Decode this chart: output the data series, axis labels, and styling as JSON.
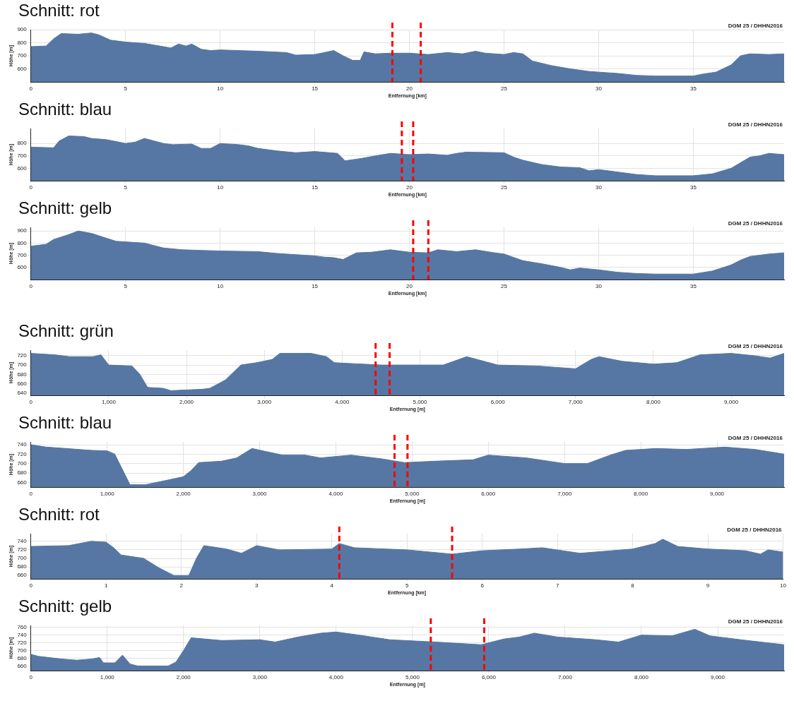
{
  "chart_data": [
    {
      "type": "area",
      "title": "Schnitt: rot",
      "xlabel": "Entfernung [km]",
      "ylabel": "Höhe [m]",
      "annotations": [
        "DGM 25 / DHHN2016"
      ],
      "grid": true,
      "legend": false,
      "marker": "none",
      "xlim": [
        0,
        39.8
      ],
      "xticks": [
        0,
        5,
        10,
        15,
        20,
        25,
        30,
        35
      ],
      "ylim": [
        500,
        900
      ],
      "yticks": [
        600,
        700,
        800,
        900
      ],
      "x": [
        0,
        0.8,
        1.2,
        1.6,
        2.5,
        3.2,
        3.6,
        4.2,
        5,
        6,
        7,
        7.4,
        7.8,
        8.2,
        8.5,
        9,
        9.5,
        10,
        12,
        13.5,
        14,
        15,
        15.5,
        16,
        16.5,
        17,
        17.4,
        17.6,
        18.2,
        19,
        20,
        21,
        22,
        22.8,
        23.5,
        24,
        25,
        25.5,
        26,
        26.5,
        27.5,
        28.5,
        29.5,
        30,
        31,
        32,
        33,
        35,
        35.5,
        36.2,
        37,
        37.5,
        38,
        39,
        39.8
      ],
      "series": [
        {
          "color": "#5677a3",
          "values": [
            770,
            775,
            830,
            870,
            865,
            875,
            860,
            820,
            805,
            795,
            770,
            760,
            790,
            775,
            790,
            750,
            740,
            745,
            735,
            725,
            705,
            710,
            725,
            740,
            700,
            665,
            665,
            730,
            715,
            720,
            720,
            710,
            725,
            715,
            735,
            720,
            710,
            725,
            715,
            660,
            625,
            600,
            580,
            575,
            565,
            550,
            545,
            545,
            560,
            575,
            630,
            700,
            715,
            710,
            715
          ]
        }
      ],
      "ref_lines": [
        {
          "axis": "x",
          "value": 19.1,
          "color": "#ff0000",
          "line_style": "dashed"
        },
        {
          "axis": "x",
          "value": 20.6,
          "color": "#ff0000",
          "line_style": "dashed"
        }
      ]
    },
    {
      "type": "area",
      "title": "Schnitt: blau",
      "xlabel": "Entfernung [km]",
      "ylabel": "Höhe [m]",
      "annotations": [
        "DGM 25 / DHHN2016"
      ],
      "grid": true,
      "legend": false,
      "marker": "none",
      "xlim": [
        0,
        39.8
      ],
      "xticks": [
        0,
        5,
        10,
        15,
        20,
        25,
        30,
        35
      ],
      "ylim": [
        500,
        920
      ],
      "yticks": [
        600,
        700,
        800
      ],
      "x": [
        0,
        1.2,
        1.5,
        2,
        2.8,
        3.2,
        4,
        5,
        5.5,
        6,
        7,
        7.5,
        8.5,
        9,
        9.5,
        10,
        11,
        11.5,
        12,
        13,
        14,
        15,
        16.2,
        16.6,
        17.5,
        18.2,
        19,
        20,
        21,
        22,
        22.5,
        23,
        25,
        25.5,
        26,
        27,
        28,
        29,
        29.5,
        30,
        31,
        32,
        33,
        35,
        36,
        37,
        38,
        38.5,
        39,
        39.8
      ],
      "series": [
        {
          "color": "#5677a3",
          "values": [
            770,
            765,
            820,
            860,
            855,
            840,
            830,
            800,
            810,
            840,
            800,
            790,
            795,
            760,
            760,
            800,
            790,
            780,
            760,
            740,
            725,
            735,
            720,
            660,
            680,
            700,
            720,
            710,
            715,
            705,
            720,
            730,
            725,
            690,
            665,
            630,
            610,
            605,
            580,
            590,
            570,
            550,
            540,
            540,
            555,
            600,
            690,
            700,
            720,
            710
          ]
        }
      ],
      "ref_lines": [
        {
          "axis": "x",
          "value": 19.6,
          "color": "#ff0000",
          "line_style": "dashed"
        },
        {
          "axis": "x",
          "value": 20.2,
          "color": "#ff0000",
          "line_style": "dashed"
        }
      ]
    },
    {
      "type": "area",
      "title": "Schnitt: gelb",
      "xlabel": "Entfernung [km]",
      "ylabel": "Höhe [m]",
      "annotations": [
        "DGM 25 / DHHN2016"
      ],
      "grid": true,
      "legend": false,
      "marker": "none",
      "xlim": [
        0,
        39.8
      ],
      "xticks": [
        0,
        5,
        10,
        15,
        20,
        25,
        30,
        35
      ],
      "ylim": [
        500,
        930
      ],
      "yticks": [
        600,
        700,
        800,
        900
      ],
      "x": [
        0,
        0.8,
        1.2,
        2,
        2.5,
        3.2,
        4,
        4.5,
        6,
        7,
        8,
        9,
        10,
        12,
        13,
        14,
        15,
        15.5,
        16,
        16.5,
        17.2,
        18,
        19,
        20,
        21,
        21.5,
        22.5,
        23.5,
        24.5,
        25,
        26,
        27,
        28,
        28.5,
        29,
        30,
        31,
        32,
        33,
        35,
        36,
        37,
        37.5,
        38,
        39,
        39.8
      ],
      "series": [
        {
          "color": "#5677a3",
          "values": [
            775,
            790,
            830,
            870,
            900,
            880,
            840,
            815,
            800,
            760,
            745,
            740,
            735,
            730,
            715,
            705,
            695,
            685,
            680,
            665,
            720,
            725,
            745,
            725,
            720,
            745,
            730,
            745,
            720,
            710,
            655,
            630,
            600,
            580,
            595,
            580,
            560,
            550,
            545,
            545,
            570,
            620,
            660,
            690,
            710,
            720
          ]
        }
      ],
      "ref_lines": [
        {
          "axis": "x",
          "value": 20.2,
          "color": "#ff0000",
          "line_style": "dashed"
        },
        {
          "axis": "x",
          "value": 21.0,
          "color": "#ff0000",
          "line_style": "dashed"
        }
      ]
    },
    {
      "type": "area",
      "title": "Schnitt: grün",
      "xlabel": "Entfernung [m]",
      "ylabel": "Höhe [m]",
      "annotations": [
        "DGM 25 / DHHN2016"
      ],
      "grid": true,
      "legend": false,
      "marker": "none",
      "xlim": [
        0,
        9680
      ],
      "xticks": [
        0,
        {
          "value": 1000,
          "label": "1,000"
        },
        {
          "value": 2000,
          "label": "2,000"
        },
        {
          "value": 3000,
          "label": "3,000"
        },
        {
          "value": 4000,
          "label": "4,000"
        },
        {
          "value": 5000,
          "label": "5,000"
        },
        {
          "value": 6000,
          "label": "6,000"
        },
        {
          "value": 7000,
          "label": "7,000"
        },
        {
          "value": 8000,
          "label": "8,000"
        },
        {
          "value": 9000,
          "label": "9,000"
        }
      ],
      "ylim": [
        635,
        732
      ],
      "yticks": [
        640,
        660,
        680,
        700,
        720
      ],
      "x": [
        0,
        300,
        500,
        800,
        900,
        1000,
        1300,
        1400,
        1500,
        1700,
        1800,
        2200,
        2300,
        2500,
        2700,
        2900,
        3100,
        3200,
        3600,
        3800,
        3900,
        4500,
        5000,
        5300,
        5500,
        5600,
        6000,
        6500,
        7000,
        7200,
        7300,
        7600,
        8000,
        8300,
        8600,
        9000,
        9300,
        9500,
        9680
      ],
      "series": [
        {
          "color": "#5677a3",
          "values": [
            725,
            722,
            718,
            718,
            722,
            700,
            698,
            680,
            652,
            650,
            645,
            648,
            650,
            668,
            700,
            705,
            712,
            725,
            725,
            718,
            705,
            700,
            700,
            700,
            712,
            718,
            700,
            698,
            692,
            712,
            718,
            708,
            702,
            705,
            722,
            725,
            720,
            715,
            725
          ]
        }
      ],
      "ref_lines": [
        {
          "axis": "x",
          "value": 4430,
          "color": "#ff0000",
          "line_style": "dashed"
        },
        {
          "axis": "x",
          "value": 4610,
          "color": "#ff0000",
          "line_style": "dashed"
        }
      ]
    },
    {
      "type": "area",
      "title": "Schnitt: blau",
      "xlabel": "Entfernung [m]",
      "ylabel": "Höhe [m]",
      "annotations": [
        "DGM 25 / DHHN2016"
      ],
      "grid": true,
      "legend": false,
      "marker": "none",
      "xlim": [
        0,
        9880
      ],
      "xticks": [
        0,
        {
          "value": 1000,
          "label": "1,000"
        },
        {
          "value": 2000,
          "label": "2,000"
        },
        {
          "value": 3000,
          "label": "3,000"
        },
        {
          "value": 4000,
          "label": "4,000"
        },
        {
          "value": 5000,
          "label": "5,000"
        },
        {
          "value": 6000,
          "label": "6,000"
        },
        {
          "value": 7000,
          "label": "7,000"
        },
        {
          "value": 8000,
          "label": "8,000"
        },
        {
          "value": 9000,
          "label": "9,000"
        }
      ],
      "ylim": [
        650,
        746
      ],
      "yticks": [
        660,
        680,
        700,
        720,
        740
      ],
      "x": [
        0,
        200,
        800,
        1000,
        1100,
        1300,
        1500,
        1800,
        2000,
        2100,
        2200,
        2500,
        2700,
        2900,
        3100,
        3300,
        3600,
        3800,
        4200,
        4600,
        4900,
        5300,
        5800,
        6000,
        6500,
        7000,
        7300,
        7600,
        7800,
        8200,
        8600,
        9100,
        9500,
        9880
      ],
      "series": [
        {
          "color": "#5677a3",
          "values": [
            740,
            735,
            728,
            727,
            720,
            655,
            655,
            665,
            672,
            685,
            702,
            705,
            712,
            732,
            725,
            718,
            718,
            712,
            718,
            710,
            702,
            705,
            708,
            718,
            712,
            700,
            700,
            718,
            728,
            732,
            730,
            735,
            730,
            720
          ]
        }
      ],
      "ref_lines": [
        {
          "axis": "x",
          "value": 4770,
          "color": "#ff0000",
          "line_style": "dashed"
        },
        {
          "axis": "x",
          "value": 4940,
          "color": "#ff0000",
          "line_style": "dashed"
        }
      ]
    },
    {
      "type": "area",
      "title": "Schnitt: rot",
      "xlabel": "Entfernung [km]",
      "ylabel": "Höhe [m]",
      "annotations": [
        "DGM 25 / DHHN2016"
      ],
      "grid": true,
      "legend": false,
      "marker": "none",
      "xlim": [
        0,
        10
      ],
      "xticks": [
        0,
        1,
        2,
        3,
        4,
        5,
        6,
        7,
        8,
        9,
        10
      ],
      "ylim": [
        652,
        758
      ],
      "yticks": [
        660,
        680,
        700,
        720,
        740
      ],
      "x": [
        0,
        0.5,
        0.8,
        1.0,
        1.1,
        1.2,
        1.5,
        1.7,
        1.9,
        2.1,
        2.2,
        2.3,
        2.6,
        2.8,
        3.0,
        3.3,
        4.0,
        4.1,
        4.3,
        5.0,
        5.6,
        6.0,
        6.5,
        6.8,
        7.3,
        8.0,
        8.3,
        8.4,
        8.6,
        9.0,
        9.5,
        9.7,
        9.8,
        10
      ],
      "series": [
        {
          "color": "#5677a3",
          "values": [
            728,
            730,
            740,
            738,
            725,
            708,
            700,
            678,
            660,
            660,
            700,
            730,
            722,
            712,
            730,
            720,
            722,
            735,
            725,
            720,
            710,
            718,
            722,
            725,
            712,
            722,
            735,
            745,
            728,
            722,
            718,
            710,
            720,
            715
          ]
        }
      ],
      "ref_lines": [
        {
          "axis": "x",
          "value": 4.1,
          "color": "#ff0000",
          "line_style": "dashed"
        },
        {
          "axis": "x",
          "value": 5.6,
          "color": "#ff0000",
          "line_style": "dashed"
        }
      ]
    },
    {
      "type": "area",
      "title": "Schnitt: gelb",
      "xlabel": "Entfernung [m]",
      "ylabel": "Höhe [m]",
      "annotations": [
        "DGM 25 / DHHN2016"
      ],
      "grid": true,
      "legend": false,
      "marker": "none",
      "xlim": [
        0,
        9870
      ],
      "xticks": [
        0,
        {
          "value": 1000,
          "label": "1,000"
        },
        {
          "value": 2000,
          "label": "2,000"
        },
        {
          "value": 3000,
          "label": "3,000"
        },
        {
          "value": 4000,
          "label": "4,000"
        },
        {
          "value": 5000,
          "label": "5,000"
        },
        {
          "value": 6000,
          "label": "6,000"
        },
        {
          "value": 7000,
          "label": "7,000"
        },
        {
          "value": 8000,
          "label": "8,000"
        },
        {
          "value": 9000,
          "label": "9,000"
        }
      ],
      "ylim": [
        648,
        765
      ],
      "yticks": [
        660,
        680,
        700,
        720,
        740,
        760
      ],
      "x": [
        0,
        100,
        400,
        600,
        800,
        900,
        950,
        1100,
        1200,
        1300,
        1400,
        1800,
        1900,
        2000,
        2100,
        2500,
        3000,
        3200,
        3500,
        3800,
        4000,
        4300,
        4700,
        5300,
        5900,
        6200,
        6400,
        6600,
        6900,
        7400,
        7700,
        8000,
        8400,
        8700,
        8900,
        9300,
        9870
      ],
      "series": [
        {
          "color": "#5677a3",
          "values": [
            690,
            685,
            678,
            675,
            678,
            682,
            668,
            668,
            688,
            665,
            660,
            660,
            670,
            700,
            733,
            726,
            728,
            722,
            735,
            745,
            748,
            740,
            728,
            722,
            715,
            730,
            735,
            745,
            735,
            728,
            722,
            740,
            738,
            755,
            738,
            728,
            715
          ]
        }
      ],
      "ref_lines": [
        {
          "axis": "x",
          "value": 5240,
          "color": "#ff0000",
          "line_style": "dashed"
        },
        {
          "axis": "x",
          "value": 5940,
          "color": "#ff0000",
          "line_style": "dashed"
        }
      ]
    }
  ]
}
